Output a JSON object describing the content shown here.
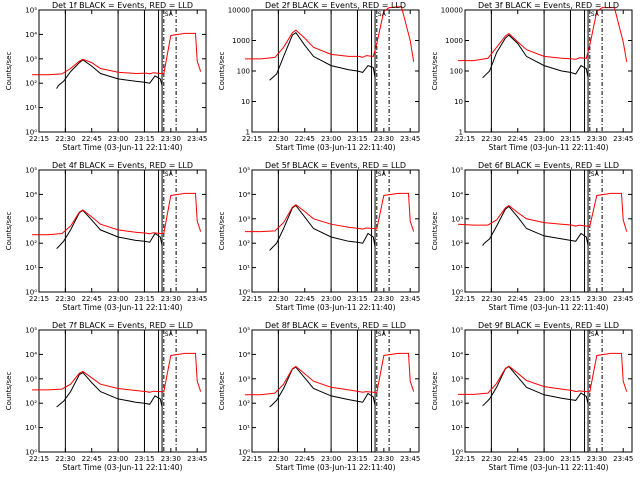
{
  "chart_data": {
    "type": "line",
    "x_range": [
      "22:15",
      "23:50"
    ],
    "xticks": [
      "22:15",
      "22:30",
      "22:45",
      "23:00",
      "23:15",
      "23:30",
      "23:45"
    ],
    "xlabel": "Start Time (03-Jun-11 22:11:40)",
    "ylabel": "Counts/sec",
    "yscale": "log",
    "colors": {
      "events": "#000000",
      "lld": "#ff0000"
    },
    "event_markers": [
      "22:30",
      "23:00",
      "23:15",
      "23:23",
      "23:25"
    ],
    "dashed_markers": [
      "23:26",
      "23:33"
    ],
    "flag_label": "SA",
    "panels": [
      {
        "title": "Det 1f BLACK = Events, RED = LLD",
        "ylim": [
          1,
          100000
        ],
        "yticks": [
          "10⁰",
          "10¹",
          "10²",
          "10³",
          "10⁴",
          "10⁵"
        ],
        "series": [
          {
            "name": "Events",
            "x": [
              "22:25",
              "22:26",
              "22:29",
              "22:33",
              "22:38",
              "22:40",
              "22:45",
              "22:50",
              "23:00",
              "23:10",
              "23:15",
              "23:18",
              "23:21",
              "23:24",
              "23:25"
            ],
            "y": [
              60,
              80,
              120,
              300,
              700,
              900,
              500,
              250,
              150,
              120,
              110,
              100,
              200,
              150,
              80
            ]
          },
          {
            "name": "LLD",
            "x": [
              "22:11",
              "22:20",
              "22:28",
              "22:33",
              "22:38",
              "22:40",
              "22:45",
              "22:50",
              "23:00",
              "23:10",
              "23:16",
              "23:18",
              "23:20",
              "23:24",
              "23:26",
              "23:30",
              "23:38",
              "23:44",
              "23:45",
              "23:47"
            ],
            "y": [
              220,
              220,
              240,
              400,
              800,
              950,
              700,
              400,
              280,
              250,
              260,
              240,
              270,
              250,
              240,
              9000,
              11000,
              11000,
              800,
              300
            ]
          }
        ]
      },
      {
        "title": "Det 2f BLACK = Events, RED = LLD",
        "ylim": [
          1,
          10000
        ],
        "yticks": [
          "1",
          "10",
          "100",
          "1000",
          "10000"
        ],
        "series": [
          {
            "name": "Events",
            "x": [
              "22:25",
              "22:29",
              "22:33",
              "22:38",
              "22:40",
              "22:45",
              "22:50",
              "23:00",
              "23:10",
              "23:15",
              "23:18",
              "23:21",
              "23:24",
              "23:25"
            ],
            "y": [
              50,
              80,
              300,
              1500,
              1800,
              700,
              300,
              150,
              110,
              100,
              90,
              150,
              130,
              60
            ]
          },
          {
            "name": "LLD",
            "x": [
              "22:11",
              "22:20",
              "22:28",
              "22:33",
              "22:38",
              "22:40",
              "22:45",
              "22:50",
              "23:00",
              "23:10",
              "23:16",
              "23:18",
              "23:20",
              "23:24",
              "23:26",
              "23:30",
              "23:33",
              "23:40",
              "23:45",
              "23:47"
            ],
            "y": [
              250,
              250,
              280,
              600,
              1800,
              2200,
              1200,
              600,
              350,
              300,
              300,
              280,
              320,
              300,
              800,
              9000,
              12000,
              13000,
              1000,
              200
            ]
          }
        ]
      },
      {
        "title": "Det 3f BLACK = Events, RED = LLD",
        "ylim": [
          1,
          10000
        ],
        "yticks": [
          "1",
          "10",
          "100",
          "1000",
          "10000"
        ],
        "series": [
          {
            "name": "Events",
            "x": [
              "22:25",
              "22:29",
              "22:33",
              "22:38",
              "22:40",
              "22:45",
              "22:50",
              "23:00",
              "23:10",
              "23:15",
              "23:18",
              "23:21",
              "23:24",
              "23:25"
            ],
            "y": [
              60,
              100,
              400,
              1200,
              1500,
              800,
              300,
              150,
              100,
              90,
              80,
              150,
              120,
              60
            ]
          },
          {
            "name": "LLD",
            "x": [
              "22:11",
              "22:20",
              "22:28",
              "22:33",
              "22:38",
              "22:40",
              "22:45",
              "22:50",
              "23:00",
              "23:10",
              "23:16",
              "23:18",
              "23:20",
              "23:24",
              "23:26",
              "23:30",
              "23:33",
              "23:40",
              "23:45",
              "23:47"
            ],
            "y": [
              220,
              220,
              260,
              600,
              1400,
              1700,
              900,
              500,
              300,
              260,
              250,
              240,
              270,
              260,
              700,
              9000,
              12000,
              12000,
              900,
              200
            ]
          }
        ]
      },
      {
        "title": "Det 4f BLACK = Events, RED = LLD",
        "ylim": [
          1,
          100000
        ],
        "yticks": [
          "10⁰",
          "10¹",
          "10²",
          "10³",
          "10⁴",
          "10⁵"
        ],
        "series": [
          {
            "name": "Events",
            "x": [
              "22:25",
              "22:26",
              "22:29",
              "22:33",
              "22:38",
              "22:40",
              "22:45",
              "22:50",
              "23:00",
              "23:10",
              "23:15",
              "23:18",
              "23:21",
              "23:24",
              "23:25"
            ],
            "y": [
              60,
              70,
              120,
              350,
              1800,
              2200,
              900,
              350,
              180,
              130,
              120,
              110,
              250,
              180,
              80
            ]
          },
          {
            "name": "LLD",
            "x": [
              "22:11",
              "22:20",
              "22:28",
              "22:33",
              "22:38",
              "22:40",
              "22:45",
              "22:50",
              "23:00",
              "23:10",
              "23:16",
              "23:18",
              "23:20",
              "23:24",
              "23:26",
              "23:30",
              "23:38",
              "23:44",
              "23:45",
              "23:47"
            ],
            "y": [
              220,
              220,
              250,
              500,
              1900,
              2300,
              1200,
              600,
              350,
              280,
              260,
              240,
              270,
              250,
              250,
              9000,
              11000,
              11000,
              800,
              300
            ]
          }
        ]
      },
      {
        "title": "Det 5f BLACK = Events, RED = LLD",
        "ylim": [
          1,
          100000
        ],
        "yticks": [
          "10⁰",
          "10¹",
          "10²",
          "10³",
          "10⁴",
          "10⁵"
        ],
        "series": [
          {
            "name": "Events",
            "x": [
              "22:25",
              "22:26",
              "22:29",
              "22:33",
              "22:38",
              "22:40",
              "22:45",
              "22:50",
              "23:00",
              "23:10",
              "23:15",
              "23:18",
              "23:21",
              "23:24",
              "23:25"
            ],
            "y": [
              50,
              60,
              100,
              400,
              2800,
              3500,
              1200,
              400,
              180,
              120,
              110,
              100,
              250,
              180,
              70
            ]
          },
          {
            "name": "LLD",
            "x": [
              "22:11",
              "22:20",
              "22:28",
              "22:33",
              "22:38",
              "22:40",
              "22:45",
              "22:50",
              "23:00",
              "23:10",
              "23:16",
              "23:18",
              "23:20",
              "23:24",
              "23:26",
              "23:30",
              "23:38",
              "23:44",
              "23:45",
              "23:47"
            ],
            "y": [
              300,
              300,
              320,
              700,
              3000,
              3800,
              2000,
              1000,
              600,
              450,
              400,
              380,
              420,
              400,
              380,
              9000,
              11000,
              11000,
              800,
              300
            ]
          }
        ]
      },
      {
        "title": "Det 6f BLACK = Events, RED = LLD",
        "ylim": [
          1,
          100000
        ],
        "yticks": [
          "10⁰",
          "10¹",
          "10²",
          "10³",
          "10⁴",
          "10⁵"
        ],
        "series": [
          {
            "name": "Events",
            "x": [
              "22:25",
              "22:26",
              "22:29",
              "22:33",
              "22:38",
              "22:40",
              "22:45",
              "22:50",
              "23:00",
              "23:10",
              "23:15",
              "23:18",
              "23:21",
              "23:24",
              "23:25"
            ],
            "y": [
              80,
              100,
              150,
              500,
              2500,
              3200,
              1200,
              400,
              200,
              150,
              130,
              120,
              250,
              180,
              80
            ]
          },
          {
            "name": "LLD",
            "x": [
              "22:11",
              "22:20",
              "22:28",
              "22:33",
              "22:38",
              "22:40",
              "22:45",
              "22:50",
              "23:00",
              "23:10",
              "23:16",
              "23:18",
              "23:20",
              "23:24",
              "23:26",
              "23:30",
              "23:38",
              "23:44",
              "23:45",
              "23:47"
            ],
            "y": [
              600,
              550,
              550,
              900,
              2800,
              3500,
              1800,
              1000,
              700,
              600,
              550,
              500,
              550,
              500,
              500,
              9000,
              11000,
              11000,
              900,
              300
            ]
          }
        ]
      },
      {
        "title": "Det 7f BLACK = Events, RED = LLD",
        "ylim": [
          1,
          100000
        ],
        "yticks": [
          "10⁰",
          "10¹",
          "10²",
          "10³",
          "10⁴",
          "10⁵"
        ],
        "series": [
          {
            "name": "Events",
            "x": [
              "22:25",
              "22:26",
              "22:29",
              "22:33",
              "22:38",
              "22:40",
              "22:45",
              "22:50",
              "23:00",
              "23:10",
              "23:15",
              "23:18",
              "23:21",
              "23:24",
              "23:25"
            ],
            "y": [
              70,
              80,
              120,
              300,
              1500,
              1800,
              700,
              300,
              150,
              110,
              100,
              90,
              200,
              150,
              70
            ]
          },
          {
            "name": "LLD",
            "x": [
              "22:11",
              "22:20",
              "22:28",
              "22:33",
              "22:38",
              "22:40",
              "22:45",
              "22:50",
              "23:00",
              "23:10",
              "23:16",
              "23:18",
              "23:20",
              "23:24",
              "23:26",
              "23:30",
              "23:38",
              "23:44",
              "23:45",
              "23:47"
            ],
            "y": [
              350,
              350,
              380,
              600,
              1700,
              2000,
              1100,
              600,
              400,
              330,
              300,
              280,
              310,
              300,
              290,
              9000,
              11000,
              11000,
              800,
              300
            ]
          }
        ]
      },
      {
        "title": "Det 8f BLACK = Events, RED = LLD",
        "ylim": [
          1,
          100000
        ],
        "yticks": [
          "10⁰",
          "10¹",
          "10²",
          "10³",
          "10⁴",
          "10⁵"
        ],
        "series": [
          {
            "name": "Events",
            "x": [
              "22:25",
              "22:26",
              "22:29",
              "22:33",
              "22:38",
              "22:40",
              "22:45",
              "22:50",
              "23:00",
              "23:10",
              "23:15",
              "23:18",
              "23:21",
              "23:24",
              "23:25"
            ],
            "y": [
              70,
              80,
              130,
              400,
              2500,
              3000,
              1100,
              400,
              200,
              140,
              120,
              110,
              250,
              180,
              80
            ]
          },
          {
            "name": "LLD",
            "x": [
              "22:11",
              "22:20",
              "22:28",
              "22:33",
              "22:38",
              "22:40",
              "22:45",
              "22:50",
              "23:00",
              "23:10",
              "23:16",
              "23:18",
              "23:20",
              "23:24",
              "23:26",
              "23:30",
              "23:38",
              "23:44",
              "23:45",
              "23:47"
            ],
            "y": [
              220,
              220,
              260,
              600,
              2600,
              3200,
              1600,
              800,
              450,
              350,
              300,
              280,
              300,
              280,
              270,
              9000,
              11000,
              11000,
              800,
              300
            ]
          }
        ]
      },
      {
        "title": "Det 9f BLACK = Events, RED = LLD",
        "ylim": [
          1,
          100000
        ],
        "yticks": [
          "10⁰",
          "10¹",
          "10²",
          "10³",
          "10⁴",
          "10⁵"
        ],
        "series": [
          {
            "name": "Events",
            "x": [
              "22:25",
              "22:26",
              "22:29",
              "22:33",
              "22:38",
              "22:40",
              "22:45",
              "22:50",
              "23:00",
              "23:10",
              "23:15",
              "23:18",
              "23:21",
              "23:24",
              "23:25"
            ],
            "y": [
              80,
              90,
              150,
              450,
              2600,
              3200,
              1200,
              450,
              220,
              160,
              140,
              130,
              260,
              190,
              90
            ]
          },
          {
            "name": "LLD",
            "x": [
              "22:11",
              "22:20",
              "22:28",
              "22:33",
              "22:38",
              "22:40",
              "22:45",
              "22:50",
              "23:00",
              "23:10",
              "23:16",
              "23:18",
              "23:20",
              "23:24",
              "23:26",
              "23:30",
              "23:38",
              "23:44",
              "23:45",
              "23:47"
            ],
            "y": [
              230,
              230,
              260,
              650,
              2700,
              3300,
              1700,
              850,
              480,
              380,
              330,
              300,
              320,
              300,
              290,
              9000,
              11000,
              11000,
              800,
              300
            ]
          }
        ]
      }
    ]
  }
}
